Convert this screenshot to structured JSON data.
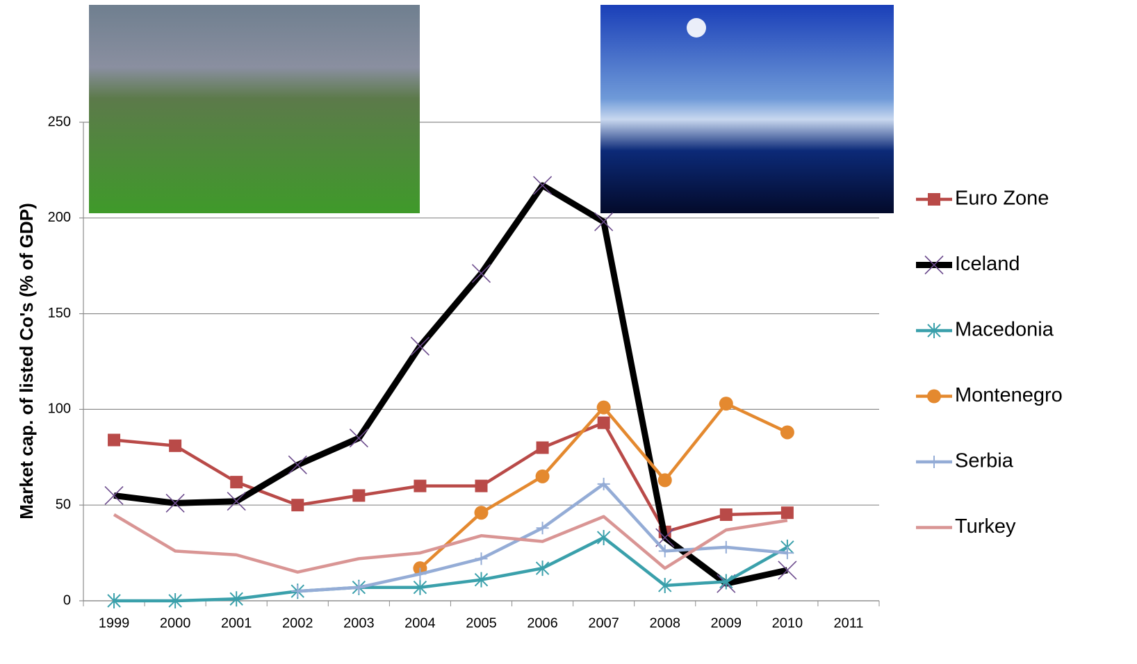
{
  "chart_data": {
    "type": "line",
    "y_label": "Market cap. of listed Co's (% of GDP)",
    "categories": [
      "1999",
      "2000",
      "2001",
      "2002",
      "2003",
      "2004",
      "2005",
      "2006",
      "2007",
      "2008",
      "2009",
      "2010",
      "2011"
    ],
    "ylim": [
      0,
      250
    ],
    "yticks": [
      0,
      50,
      100,
      150,
      200,
      250
    ],
    "grid": true,
    "series": [
      {
        "name": "Euro Zone",
        "color": "#b94a48",
        "marker": "square",
        "values": [
          84,
          81,
          62,
          50,
          55,
          60,
          60,
          80,
          93,
          36,
          45,
          46,
          null
        ]
      },
      {
        "name": "Iceland",
        "color": "#000000",
        "marker": "x",
        "values": [
          55,
          51,
          52,
          71,
          85,
          133,
          171,
          217,
          198,
          33,
          9,
          16,
          null
        ]
      },
      {
        "name": "Macedonia",
        "color": "#3aa0ab",
        "marker": "asterisk",
        "values": [
          0,
          0,
          1,
          5,
          7,
          7,
          11,
          17,
          33,
          8,
          10,
          28,
          null
        ]
      },
      {
        "name": "Montenegro",
        "color": "#e4892f",
        "marker": "circle",
        "values": [
          null,
          null,
          null,
          null,
          null,
          17,
          46,
          65,
          101,
          63,
          103,
          88,
          null
        ]
      },
      {
        "name": "Serbia",
        "color": "#94acd6",
        "marker": "plus",
        "values": [
          null,
          null,
          null,
          5,
          7,
          14,
          22,
          38,
          61,
          26,
          28,
          25,
          null
        ]
      },
      {
        "name": "Turkey",
        "color": "#d99594",
        "marker": "none",
        "values": [
          45,
          26,
          24,
          15,
          22,
          25,
          34,
          31,
          44,
          17,
          37,
          42,
          null
        ]
      }
    ]
  }
}
